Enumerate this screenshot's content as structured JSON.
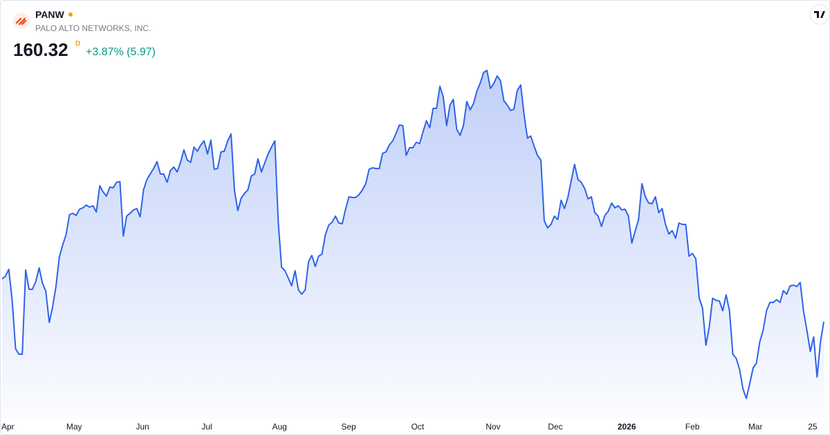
{
  "header": {
    "symbol": "PANW",
    "name": "PALO ALTO NETWORKS, INC.",
    "interval": "D",
    "change": "+3.87% (5.97)"
  },
  "chart_data": {
    "type": "area",
    "color": "#2e62ea",
    "values": [
      172.7,
      173.5,
      175.5,
      166.5,
      152.5,
      150.9,
      150.9,
      175.3,
      169.7,
      169.7,
      171.9,
      175.9,
      171.5,
      169.1,
      160.1,
      164.5,
      170.5,
      179.1,
      182.5,
      185.5,
      191.3,
      191.7,
      191.1,
      192.9,
      193.3,
      194.1,
      193.5,
      193.9,
      192.1,
      199.7,
      197.9,
      196.7,
      199.3,
      199.1,
      200.7,
      200.9,
      185.1,
      190.9,
      191.7,
      192.7,
      193.1,
      190.7,
      198.5,
      201.5,
      203.1,
      204.7,
      206.7,
      203.1,
      203.1,
      200.7,
      204.1,
      205.1,
      203.7,
      206.5,
      210.1,
      207.1,
      206.5,
      210.9,
      209.7,
      211.5,
      212.7,
      208.9,
      212.9,
      204.5,
      204.7,
      209.5,
      209.7,
      212.7,
      214.7,
      198.3,
      192.5,
      196.1,
      197.5,
      198.5,
      202.5,
      203.1,
      207.5,
      203.7,
      206.3,
      208.9,
      210.9,
      212.7,
      189.5,
      176.1,
      175.1,
      172.9,
      170.7,
      175.1,
      169.5,
      168.3,
      169.5,
      177.7,
      179.5,
      176.3,
      179.3,
      179.9,
      185.5,
      188.3,
      189.1,
      190.9,
      188.9,
      188.7,
      192.9,
      196.5,
      196.3,
      196.3,
      197.1,
      198.5,
      200.3,
      204.5,
      204.9,
      204.7,
      204.7,
      209.1,
      209.5,
      211.5,
      212.7,
      214.9,
      217.3,
      217.1,
      208.5,
      210.7,
      210.7,
      212.3,
      211.9,
      215.3,
      218.5,
      216.5,
      222.1,
      222.1,
      228.5,
      225.5,
      217.1,
      223.1,
      224.7,
      216.1,
      214.3,
      217.1,
      224.1,
      221.7,
      223.5,
      227.1,
      229.5,
      232.5,
      233.1,
      227.9,
      229.3,
      231.5,
      230.1,
      224.3,
      223.1,
      221.5,
      221.9,
      227.3,
      228.9,
      220.3,
      213.5,
      214.1,
      211.1,
      208.5,
      207.1,
      189.5,
      187.5,
      188.5,
      190.9,
      189.9,
      195.5,
      193.1,
      196.3,
      201.1,
      205.9,
      201.5,
      200.7,
      198.9,
      195.9,
      196.5,
      191.9,
      190.9,
      187.9,
      191.1,
      192.3,
      194.7,
      193.3,
      193.9,
      192.7,
      192.9,
      190.9,
      183.1,
      186.5,
      189.9,
      200.3,
      196.5,
      194.7,
      194.5,
      196.5,
      191.9,
      193.1,
      188.5,
      185.7,
      186.7,
      184.5,
      188.9,
      188.5,
      188.5,
      179.3,
      180.1,
      178.5,
      167.1,
      164.3,
      153.5,
      158.9,
      167.1,
      166.5,
      166.3,
      163.5,
      168.1,
      163.5,
      150.9,
      149.7,
      146.5,
      140.9,
      138.1,
      142.3,
      146.9,
      148.3,
      154.5,
      157.9,
      163.5,
      165.9,
      165.9,
      166.7,
      165.9,
      169.3,
      168.3,
      170.7,
      170.9,
      170.5,
      171.7,
      163.3,
      157.7,
      151.7,
      155.9,
      144.3,
      154.3,
      160.32
    ],
    "xticks": [
      {
        "value": 1.6,
        "label": "Apr"
      },
      {
        "value": 21.4,
        "label": "May"
      },
      {
        "value": 41.7,
        "label": "Jun"
      },
      {
        "value": 60.8,
        "label": "Jul"
      },
      {
        "value": 82.4,
        "label": "Aug"
      },
      {
        "value": 102.9,
        "label": "Sep"
      },
      {
        "value": 123.4,
        "label": "Oct"
      },
      {
        "value": 145.8,
        "label": "Nov"
      },
      {
        "value": 164.3,
        "label": "Dec"
      },
      {
        "value": 185.5,
        "label": "2026"
      },
      {
        "value": 205.0,
        "label": "Feb"
      },
      {
        "value": 223.7,
        "label": "Mar"
      },
      {
        "value": 240.7,
        "label": "25"
      }
    ]
  }
}
